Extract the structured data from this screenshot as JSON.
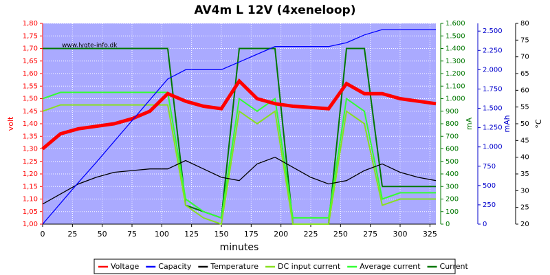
{
  "chart_data": {
    "type": "line",
    "title": "AV4m L 12V (4xeneloop)",
    "watermark": "www.lygte-info.dk",
    "x_label": "minutes",
    "y_label": "volt",
    "y2_label": "mA",
    "y3_label": "mAh",
    "y4_label": "°C",
    "x": [
      0,
      15,
      30,
      45,
      60,
      75,
      90,
      105,
      120,
      135,
      150,
      165,
      180,
      195,
      210,
      225,
      240,
      255,
      270,
      285,
      300,
      315,
      330
    ],
    "xlim": [
      0,
      330
    ],
    "xticks": [
      0,
      25,
      50,
      75,
      100,
      125,
      150,
      175,
      200,
      225,
      250,
      275,
      300,
      325
    ],
    "ylim": [
      1.0,
      1.8
    ],
    "yticks": [
      {
        "value": 1.0,
        "label": "1,00"
      },
      {
        "value": 1.05,
        "label": "1,05"
      },
      {
        "value": 1.1,
        "label": "1,10"
      },
      {
        "value": 1.15,
        "label": "1,15"
      },
      {
        "value": 1.2,
        "label": "1,20"
      },
      {
        "value": 1.25,
        "label": "1,25"
      },
      {
        "value": 1.3,
        "label": "1,30"
      },
      {
        "value": 1.35,
        "label": "1,35"
      },
      {
        "value": 1.4,
        "label": "1,40"
      },
      {
        "value": 1.45,
        "label": "1,45"
      },
      {
        "value": 1.5,
        "label": "1,50"
      },
      {
        "value": 1.55,
        "label": "1,55"
      },
      {
        "value": 1.6,
        "label": "1,60"
      },
      {
        "value": 1.65,
        "label": "1,65"
      },
      {
        "value": 1.7,
        "label": "1,70"
      },
      {
        "value": 1.75,
        "label": "1,75"
      },
      {
        "value": 1.8,
        "label": "1,80"
      }
    ],
    "y2lim": [
      0,
      1600
    ],
    "y2ticks": [
      0,
      100,
      200,
      300,
      400,
      500,
      600,
      700,
      800,
      900,
      {
        "value": 1000,
        "label": "1.000"
      },
      {
        "value": 1100,
        "label": "1.100"
      },
      {
        "value": 1200,
        "label": "1.200"
      },
      {
        "value": 1300,
        "label": "1.300"
      },
      {
        "value": 1400,
        "label": "1.400"
      },
      {
        "value": 1500,
        "label": "1.500"
      },
      {
        "value": 1600,
        "label": "1.600"
      }
    ],
    "y3lim": [
      0,
      2600
    ],
    "y3ticks": [
      0,
      250,
      500,
      750,
      {
        "value": 1000,
        "label": "1.000"
      },
      {
        "value": 1250,
        "label": "1.250"
      },
      {
        "value": 1500,
        "label": "1.500"
      },
      {
        "value": 1750,
        "label": "1.750"
      },
      {
        "value": 2000,
        "label": "2.000"
      },
      {
        "value": 2250,
        "label": "2.250"
      },
      {
        "value": 2500,
        "label": "2.500"
      }
    ],
    "y4lim": [
      20,
      80
    ],
    "y4ticks": [
      20,
      25,
      30,
      35,
      40,
      45,
      50,
      55,
      60,
      65,
      70,
      75,
      80
    ],
    "grid": true,
    "series": [
      {
        "name": "Voltage",
        "color": "#ff0000",
        "axis": "y",
        "values": [
          1.3,
          1.36,
          1.38,
          1.39,
          1.4,
          1.42,
          1.45,
          1.52,
          1.49,
          1.47,
          1.46,
          1.57,
          1.5,
          1.48,
          1.47,
          1.465,
          1.46,
          1.56,
          1.52,
          1.52,
          1.5,
          1.49,
          1.48
        ]
      },
      {
        "name": "Capacity",
        "color": "#0000ff",
        "axis": "y3",
        "values": [
          0,
          270,
          540,
          800,
          1070,
          1340,
          1610,
          1880,
          2000,
          2000,
          2000,
          2100,
          2200,
          2300,
          2300,
          2300,
          2300,
          2350,
          2450,
          2520,
          2520,
          2520,
          2520
        ]
      },
      {
        "name": "Temperature",
        "color": "#000000",
        "axis": "y4",
        "values": [
          26,
          29,
          32,
          34,
          35.5,
          36,
          36.5,
          36.5,
          39,
          36.5,
          34,
          33,
          38,
          40,
          37,
          34,
          32,
          33,
          36,
          38,
          35.5,
          34,
          33
        ]
      },
      {
        "name": "DC input current",
        "color": "#88e020",
        "axis": "y2",
        "values": [
          900,
          950,
          950,
          950,
          950,
          950,
          950,
          950,
          150,
          50,
          0,
          900,
          800,
          900,
          0,
          0,
          0,
          900,
          800,
          150,
          200,
          200,
          200
        ]
      },
      {
        "name": "Average current",
        "color": "#33ff33",
        "axis": "y2",
        "values": [
          1000,
          1050,
          1050,
          1050,
          1050,
          1050,
          1050,
          1050,
          200,
          100,
          50,
          1000,
          900,
          1000,
          50,
          50,
          50,
          1000,
          900,
          200,
          250,
          250,
          250
        ]
      },
      {
        "name": "Current",
        "color": "#007700",
        "axis": "y2",
        "values": [
          1400,
          1400,
          1400,
          1400,
          1400,
          1400,
          1400,
          1400,
          150,
          100,
          50,
          1400,
          1400,
          1400,
          0,
          0,
          0,
          1400,
          1400,
          300,
          300,
          300,
          300
        ]
      }
    ]
  }
}
